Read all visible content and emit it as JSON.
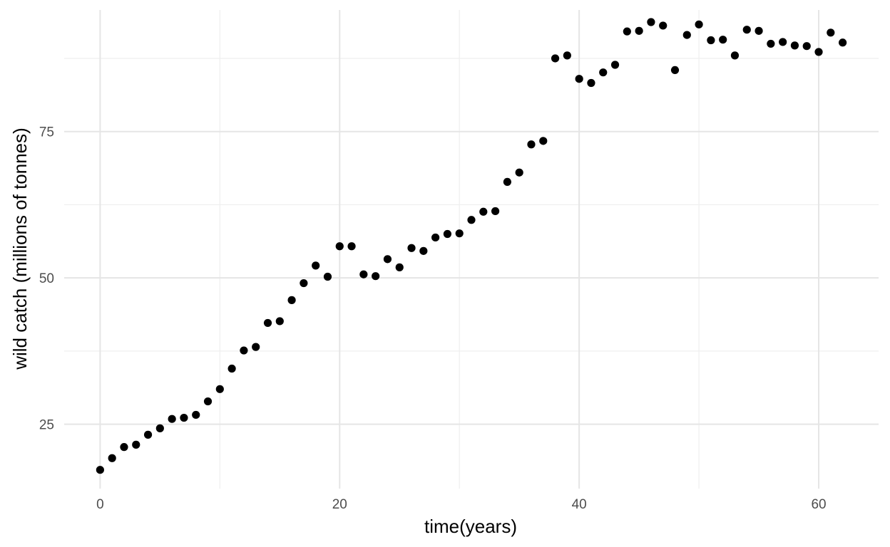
{
  "chart_data": {
    "type": "scatter",
    "title": "",
    "xlabel": "time(years)",
    "ylabel": "wild catch (millions of tonnes)",
    "xlim": [
      -3,
      65
    ],
    "ylim": [
      14,
      96.5
    ],
    "x_ticks": [
      0,
      20,
      40,
      60
    ],
    "y_ticks": [
      25,
      50,
      75
    ],
    "x_minor": [
      10,
      30,
      50
    ],
    "y_minor": [
      37.5,
      62.5,
      87.5
    ],
    "grid": true,
    "point_color": "#000000",
    "x": [
      0,
      1,
      2,
      3,
      4,
      5,
      6,
      7,
      8,
      9,
      10,
      11,
      12,
      13,
      14,
      15,
      16,
      17,
      18,
      19,
      20,
      21,
      22,
      23,
      24,
      25,
      26,
      27,
      28,
      29,
      30,
      31,
      32,
      33,
      34,
      35,
      36,
      37,
      38,
      39,
      40,
      41,
      42,
      43,
      44,
      45,
      46,
      47,
      48,
      49,
      50,
      51,
      52,
      53,
      54,
      55,
      56,
      57,
      58,
      59,
      60,
      61,
      62
    ],
    "y": [
      17.2,
      19.2,
      21.1,
      21.5,
      23.2,
      24.3,
      25.9,
      26.1,
      26.6,
      28.9,
      31.0,
      34.5,
      37.6,
      38.2,
      42.3,
      42.6,
      46.2,
      49.1,
      52.1,
      50.2,
      55.4,
      55.4,
      50.6,
      50.3,
      53.2,
      51.8,
      55.1,
      54.6,
      56.9,
      57.5,
      57.6,
      59.9,
      61.3,
      61.4,
      66.4,
      68.0,
      72.8,
      73.4,
      87.5,
      88.0,
      84.0,
      83.3,
      85.1,
      86.4,
      92.1,
      92.2,
      93.7,
      93.1,
      85.5,
      91.5,
      93.3,
      90.6,
      90.7,
      88.0,
      92.4,
      92.2,
      90.0,
      90.3,
      89.7,
      89.6,
      88.6,
      91.9,
      90.2
    ]
  }
}
